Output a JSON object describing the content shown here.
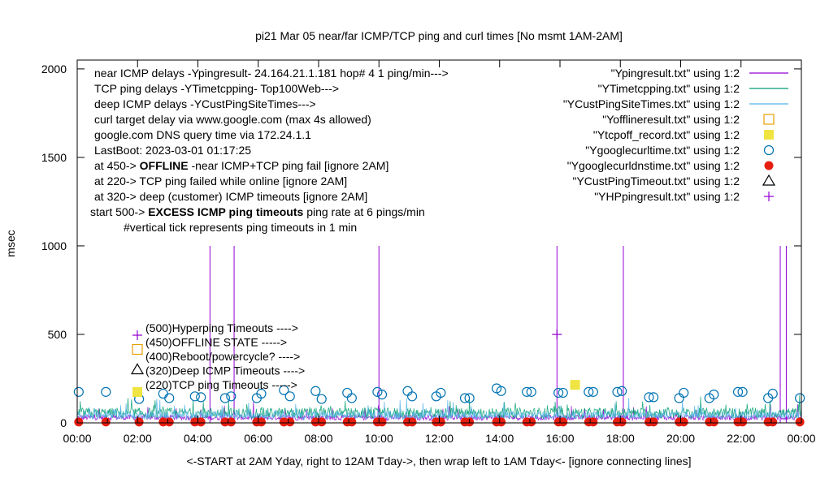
{
  "chart_data": {
    "type": "line",
    "title": "pi21 Mar 05  near/far ICMP/TCP ping and curl times [No msmt 1AM-2AM]",
    "xlabel": "<-START at 2AM Yday, right to 12AM Tday->, then wrap left to 1AM Tday<- [ignore connecting lines]",
    "ylabel": "msec",
    "x_range_hours": [
      0,
      24
    ],
    "ylim": [
      0,
      2050
    ],
    "x_ticks": [
      "00:00",
      "02:00",
      "04:00",
      "06:00",
      "08:00",
      "10:00",
      "12:00",
      "14:00",
      "16:00",
      "18:00",
      "20:00",
      "22:00",
      "00:00"
    ],
    "y_ticks": [
      "0",
      "500",
      "1000",
      "1500",
      "2000"
    ],
    "y_tick_values": [
      0,
      500,
      1000,
      1500,
      2000
    ],
    "grid": false,
    "notes": [
      {
        "text": "near ICMP delays -Ypingresult- 24.164.21.1.181 hop# 4 1 ping/min--->",
        "bold": ""
      },
      {
        "text": "TCP ping delays -YTimetcpping- Top100Web--->",
        "bold": ""
      },
      {
        "text": "deep ICMP delays -YCustPingSiteTimes--->",
        "bold": ""
      },
      {
        "text": "curl target delay via www.google.com (max 4s allowed)",
        "bold": ""
      },
      {
        "text": "google.com DNS query time via 172.24.1.1",
        "bold": ""
      },
      {
        "text": "LastBoot: 2023-03-01 01:17:25",
        "bold": ""
      },
      {
        "text": "at 450->",
        "bold": "OFFLINE",
        "after": "-near ICMP+TCP ping fail [ignore 2AM]"
      },
      {
        "text": "at 220-> TCP ping failed while online [ignore 2AM]",
        "bold": ""
      },
      {
        "text": "at 320-> deep (customer) ICMP timeouts [ignore 2AM]",
        "bold": ""
      },
      {
        "text": "start 500->",
        "bold": "EXCESS ICMP ping timeouts",
        "after": "ping rate at 6 pings/min"
      },
      {
        "text": "#vertical tick represents ping timeouts in 1 min",
        "bold": ""
      }
    ],
    "marker_labels": [
      {
        "text": "(500)Hyperping Timeouts ---->",
        "marker": "plus",
        "y": 500
      },
      {
        "text": "(450)OFFLINE STATE ----->",
        "marker": "open-square",
        "y": 450
      },
      {
        "text": "(400)Reboot/powercycle? ---->",
        "marker": "none",
        "y": 400
      },
      {
        "text": "(320)Deep ICMP Timeouts ---->",
        "marker": "triangle",
        "y": 320
      },
      {
        "text": "(220)TCP ping Timeouts ----->",
        "marker": "filled-square",
        "y": 220
      }
    ],
    "legend_position": "top-right",
    "series": [
      {
        "name": "\"Ypingresult.txt\" using 1:2",
        "style": "line",
        "color": "#9400d3",
        "spikes": [
          [
            4.4,
            1000
          ],
          [
            5.2,
            1000
          ],
          [
            10.0,
            1000
          ],
          [
            15.9,
            1000
          ],
          [
            18.1,
            1000
          ],
          [
            23.3,
            1000
          ],
          [
            23.5,
            1000
          ]
        ]
      },
      {
        "name": "\"YTimetcpping.txt\" using 1:2",
        "style": "line",
        "color": "#009e73"
      },
      {
        "name": "\"YCustPingSiteTimes.txt\" using 1:2",
        "style": "line",
        "color": "#56b4e9"
      },
      {
        "name": "\"Yofflineresult.txt\" using 1:2",
        "style": "open-square",
        "color": "#e69f00",
        "points": []
      },
      {
        "name": "\"Ytcpoff_record.txt\" using 1:2",
        "style": "filled-square",
        "color": "#f0e442",
        "points": [
          [
            16.5,
            215
          ]
        ]
      },
      {
        "name": "\"Ygooglecurltime.txt\" using 1:2",
        "style": "open-circle",
        "color": "#0072b2",
        "points": [
          [
            0.05,
            175
          ],
          [
            0.95,
            175
          ],
          [
            2.05,
            135
          ],
          [
            2.85,
            165
          ],
          [
            3.05,
            140
          ],
          [
            3.9,
            150
          ],
          [
            4.1,
            145
          ],
          [
            4.9,
            140
          ],
          [
            5.1,
            150
          ],
          [
            5.95,
            140
          ],
          [
            6.1,
            165
          ],
          [
            6.85,
            185
          ],
          [
            7.05,
            150
          ],
          [
            7.9,
            180
          ],
          [
            8.1,
            135
          ],
          [
            8.95,
            170
          ],
          [
            9.1,
            140
          ],
          [
            9.95,
            175
          ],
          [
            10.1,
            160
          ],
          [
            10.95,
            180
          ],
          [
            11.1,
            150
          ],
          [
            11.9,
            150
          ],
          [
            12.05,
            170
          ],
          [
            12.85,
            140
          ],
          [
            13.0,
            140
          ],
          [
            13.9,
            195
          ],
          [
            14.05,
            180
          ],
          [
            14.9,
            175
          ],
          [
            15.05,
            175
          ],
          [
            15.95,
            170
          ],
          [
            16.1,
            170
          ],
          [
            16.95,
            175
          ],
          [
            17.1,
            175
          ],
          [
            17.9,
            175
          ],
          [
            18.05,
            180
          ],
          [
            18.95,
            145
          ],
          [
            19.1,
            145
          ],
          [
            19.95,
            140
          ],
          [
            20.1,
            170
          ],
          [
            20.95,
            140
          ],
          [
            21.1,
            160
          ],
          [
            21.9,
            175
          ],
          [
            22.05,
            175
          ],
          [
            22.9,
            140
          ],
          [
            23.05,
            165
          ],
          [
            23.95,
            140
          ]
        ]
      },
      {
        "name": "\"Ygooglecurldnstime.txt\" using 1:2",
        "style": "filled-circle",
        "color": "#e51e10",
        "points": [
          [
            0.05,
            5
          ],
          [
            0.95,
            5
          ],
          [
            2.05,
            5
          ],
          [
            2.85,
            5
          ],
          [
            3.05,
            5
          ],
          [
            3.9,
            5
          ],
          [
            4.1,
            5
          ],
          [
            4.9,
            5
          ],
          [
            5.1,
            5
          ],
          [
            5.95,
            5
          ],
          [
            6.1,
            5
          ],
          [
            6.85,
            5
          ],
          [
            7.05,
            5
          ],
          [
            7.9,
            5
          ],
          [
            8.1,
            5
          ],
          [
            8.95,
            5
          ],
          [
            9.1,
            5
          ],
          [
            9.95,
            5
          ],
          [
            10.1,
            5
          ],
          [
            10.95,
            5
          ],
          [
            11.1,
            5
          ],
          [
            11.9,
            5
          ],
          [
            12.05,
            5
          ],
          [
            12.85,
            5
          ],
          [
            13.0,
            5
          ],
          [
            13.9,
            5
          ],
          [
            14.05,
            5
          ],
          [
            14.9,
            5
          ],
          [
            15.05,
            5
          ],
          [
            15.95,
            5
          ],
          [
            16.1,
            5
          ],
          [
            16.95,
            5
          ],
          [
            17.1,
            5
          ],
          [
            17.9,
            5
          ],
          [
            18.05,
            5
          ],
          [
            18.95,
            5
          ],
          [
            19.1,
            5
          ],
          [
            19.95,
            5
          ],
          [
            20.1,
            5
          ],
          [
            20.95,
            5
          ],
          [
            21.1,
            5
          ],
          [
            21.9,
            5
          ],
          [
            22.05,
            5
          ],
          [
            22.9,
            5
          ],
          [
            23.05,
            5
          ],
          [
            23.95,
            5
          ]
        ]
      },
      {
        "name": "\"YCustPingTimeout.txt\" using 1:2",
        "style": "triangle",
        "color": "#000000",
        "points": []
      },
      {
        "name": "\"YHPpingresult.txt\" using 1:2",
        "style": "plus",
        "color": "#9400d3",
        "points": [
          [
            15.9,
            500
          ]
        ]
      }
    ]
  }
}
